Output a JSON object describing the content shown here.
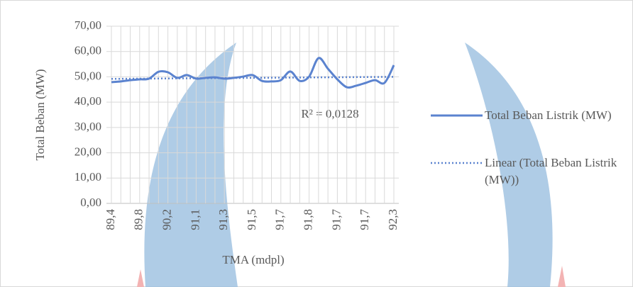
{
  "chart_data": {
    "type": "line",
    "x_label": "TMA (mdpl)",
    "y_label": "Total Beban (MW)",
    "categories": [
      "89,4",
      null,
      null,
      "89,8",
      null,
      null,
      "90,2",
      null,
      null,
      "91,1",
      null,
      null,
      "91,3",
      null,
      null,
      "91,5",
      null,
      null,
      "91,7",
      null,
      null,
      "91,8",
      null,
      null,
      "91,7",
      null,
      null,
      "91,7",
      null,
      null,
      "92,3"
    ],
    "series": [
      {
        "name": "Total Beban Listrik (MW)",
        "color": "#5b83cf",
        "values": [
          47.9,
          48.2,
          48.7,
          49,
          49.3,
          52,
          51.8,
          49.6,
          50.7,
          49.3,
          49.6,
          49.8,
          49.3,
          49.6,
          50.1,
          50.7,
          48.4,
          48.2,
          48.7,
          52.1,
          48.4,
          50.1,
          57.4,
          53.2,
          49,
          45.9,
          46.5,
          47.6,
          48.7,
          47.6,
          54.6
        ]
      }
    ],
    "trendline": {
      "name": "Linear (Total Beban Listrik (MW))",
      "color": "#5b83cf",
      "values": [
        49.2,
        50
      ]
    },
    "annotation": "R² = 0,0128",
    "ylim": [
      0,
      70
    ],
    "yticks": [
      {
        "value": 0,
        "label": "0,00"
      },
      {
        "value": 10,
        "label": "10,00"
      },
      {
        "value": 20,
        "label": "20,00"
      },
      {
        "value": 30,
        "label": "30,00"
      },
      {
        "value": 40,
        "label": "40,00"
      },
      {
        "value": 50,
        "label": "50,00"
      },
      {
        "value": 60,
        "label": "60,00"
      },
      {
        "value": 70,
        "label": "70,00"
      }
    ],
    "grid": true
  }
}
